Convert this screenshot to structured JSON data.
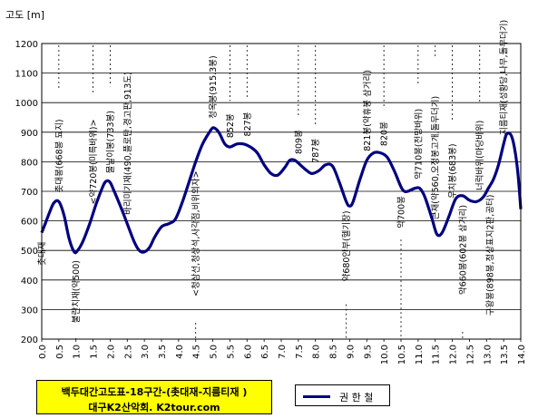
{
  "chart_data": {
    "type": "line",
    "ylabel": "고도 [m]",
    "xlabel": "",
    "ylim": [
      200,
      1200
    ],
    "xlim": [
      0,
      14
    ],
    "yticks": [
      "200",
      "300",
      "400",
      "500",
      "600",
      "700",
      "800",
      "900",
      "1000",
      "1100",
      "1200"
    ],
    "xticks": [
      "0.0",
      "0.5",
      "1.0",
      "1.5",
      "2.0",
      "2.5",
      "3.0",
      "3.5",
      "4.0",
      "4.5",
      "5.0",
      "5.5",
      "6.0",
      "6.5",
      "7.0",
      "7.5",
      "8.0",
      "8.5",
      "9.0",
      "9.5",
      "10.0",
      "10.5",
      "11.0",
      "11.5",
      "12.0",
      "12.5",
      "13.0",
      "13.5",
      "14.0"
    ],
    "grid": true,
    "legend_placement": "bottom",
    "series": [
      {
        "name": "권 한 철",
        "color": "#000080",
        "x": [
          0.0,
          0.1,
          0.2,
          0.35,
          0.5,
          0.65,
          0.8,
          0.95,
          1.05,
          1.2,
          1.4,
          1.6,
          1.8,
          1.9,
          2.0,
          2.1,
          2.3,
          2.5,
          2.7,
          2.85,
          3.0,
          3.15,
          3.3,
          3.5,
          3.7,
          3.9,
          4.1,
          4.3,
          4.5,
          4.7,
          4.9,
          5.0,
          5.1,
          5.2,
          5.35,
          5.5,
          5.7,
          5.9,
          6.1,
          6.3,
          6.5,
          6.7,
          6.9,
          7.1,
          7.25,
          7.4,
          7.6,
          7.75,
          7.9,
          8.1,
          8.3,
          8.5,
          8.7,
          8.9,
          9.0,
          9.1,
          9.3,
          9.5,
          9.7,
          9.9,
          10.1,
          10.3,
          10.5,
          10.6,
          10.7,
          10.9,
          11.05,
          11.2,
          11.4,
          11.55,
          11.7,
          11.9,
          12.1,
          12.3,
          12.5,
          12.7,
          12.9,
          13.05,
          13.2,
          13.35,
          13.5,
          13.6,
          13.75,
          13.9,
          14.0
        ],
        "values": [
          560,
          590,
          620,
          660,
          665,
          620,
          540,
          495,
          500,
          530,
          590,
          660,
          720,
          735,
          730,
          705,
          650,
          590,
          530,
          500,
          495,
          510,
          545,
          580,
          590,
          605,
          660,
          730,
          800,
          860,
          900,
          915,
          910,
          895,
          860,
          850,
          860,
          860,
          850,
          830,
          790,
          760,
          755,
          780,
          805,
          805,
          785,
          770,
          760,
          770,
          790,
          785,
          730,
          665,
          650,
          665,
          740,
          805,
          830,
          830,
          815,
          770,
          715,
          700,
          700,
          710,
          710,
          680,
          610,
          555,
          560,
          615,
          675,
          685,
          670,
          665,
          680,
          710,
          740,
          790,
          860,
          895,
          880,
          780,
          640
        ]
      }
    ],
    "annotations": [
      {
        "x": 0.0,
        "text": "촛대재",
        "side": "below"
      },
      {
        "x": 0.5,
        "text": "촛대봉(668봉 묘지)",
        "side": "above"
      },
      {
        "x": 1.0,
        "text": "불란치재(약500)",
        "side": "below"
      },
      {
        "x": 1.5,
        "text": "<약720봉(미륵바위)>",
        "side": "above"
      },
      {
        "x": 2.0,
        "text": "물날이봉(733봉)",
        "side": "above"
      },
      {
        "x": 2.5,
        "text": "바리미기재(490,플로탄,경고판,913도)",
        "side": "above"
      },
      {
        "x": 4.5,
        "text": "<청삼선,청상석,사각점,비위의자>",
        "side": "below"
      },
      {
        "x": 5.0,
        "text": "청옥봉(915.3봉)",
        "side": "above"
      },
      {
        "x": 5.5,
        "text": "852봉",
        "side": "above"
      },
      {
        "x": 6.0,
        "text": "827봉",
        "side": "above"
      },
      {
        "x": 7.5,
        "text": "809봉",
        "side": "above"
      },
      {
        "x": 8.0,
        "text": "787봉",
        "side": "above"
      },
      {
        "x": 8.9,
        "text": "약680안부(헬기장)",
        "side": "below"
      },
      {
        "x": 9.5,
        "text": "821봉(약휴봉 삼거리)",
        "side": "above"
      },
      {
        "x": 10.0,
        "text": "820봉",
        "side": "above"
      },
      {
        "x": 10.5,
        "text": "약700봉",
        "side": "below"
      },
      {
        "x": 11.0,
        "text": "약710봉(전망바위)",
        "side": "above"
      },
      {
        "x": 11.5,
        "text": "큰재(약560,오정봉고개,돌무더기)",
        "side": "above"
      },
      {
        "x": 12.0,
        "text": "우치봉(683봉)",
        "side": "above"
      },
      {
        "x": 12.3,
        "text": "약660봉(602봉 삼거리)",
        "side": "below"
      },
      {
        "x": 12.8,
        "text": "너럭바위(마당바위)",
        "side": "above"
      },
      {
        "x": 13.1,
        "text": "구왕봉(898봉,정상표지2판,공터)",
        "side": "below"
      },
      {
        "x": 13.5,
        "text": "지름티재(성황당,나무,돌무더기)",
        "side": "above"
      }
    ]
  },
  "title_box": {
    "line1": "백두대간고도표-18구간-(촛대재-지름티재 )",
    "line2": "대구K2산악회.  K2tour.com"
  },
  "legend": {
    "series_label": "권 한 철"
  }
}
